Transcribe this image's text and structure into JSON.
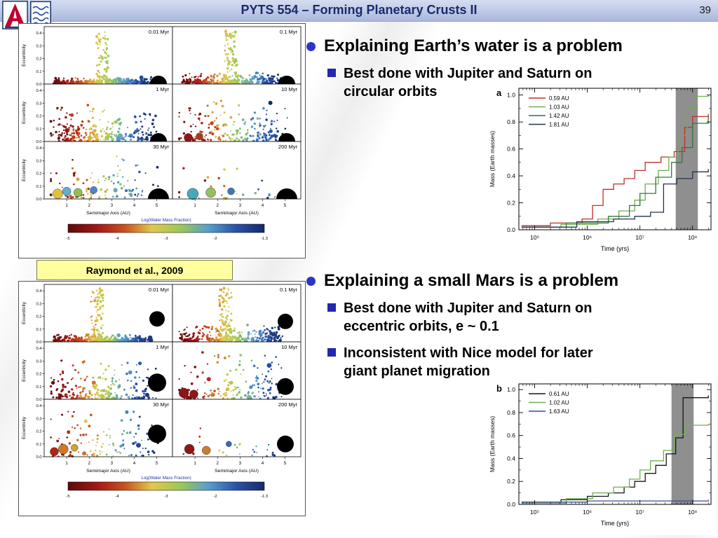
{
  "header": {
    "title": "PYTS 554 – Forming Planetary Crusts II",
    "page_number": "39"
  },
  "slide": {
    "caption_box": "Raymond et al., 2009",
    "bullet1": "Explaining Earth’s water is a problem",
    "sub1a": "Best done with Jupiter and Saturn on\ncircular orbits",
    "bullet2": "Explaining a small Mars is a problem",
    "sub2a": "Best done with Jupiter and Saturn on\neccentric orbits, e ~ 0.1",
    "sub2b": "Inconsistent with Nice model for later\ngiant planet migration",
    "bullet_color": "#2d35c8",
    "sub_bullet_color": "#2228b0"
  },
  "scatter_figures": {
    "xlabel": "Semimajor Axis (AU)",
    "ylabel": "Eccentricity",
    "colorbar_label": "Log(Water Mass Fraction)",
    "colorbar_ticks": [
      "-5",
      "-4",
      "-3",
      "-2",
      "-1.3"
    ],
    "colorbar_stops": [
      "#5e0b0b",
      "#a01616",
      "#c8501e",
      "#e2c84c",
      "#9cc855",
      "#58a0cc",
      "#2a52a8",
      "#142a66"
    ],
    "x_ticks": [
      "1",
      "2",
      "3",
      "4",
      "5"
    ],
    "y_ticks": [
      "0.0",
      "0.1",
      "0.2",
      "0.3",
      "0.4"
    ],
    "panel_labels": [
      "0.01 Myr",
      "0.1 Myr",
      "1 Myr",
      "10 Myr",
      "30 Myr",
      "200 Myr"
    ],
    "figures": [
      {
        "id": "circular",
        "giant_style": "semicircle",
        "plume_center": 2.6,
        "panels": [
          {
            "label": "0.01 Myr",
            "n": 300,
            "emax": 0.05,
            "scatter": 0.05,
            "plume": 0.22,
            "giant_r": 12,
            "giant_e": 0,
            "planets": []
          },
          {
            "label": "0.1 Myr",
            "n": 300,
            "emax": 0.09,
            "scatter": 0.15,
            "plume": 0.22,
            "giant_r": 12,
            "giant_e": 0,
            "planets": []
          },
          {
            "label": "1 Myr",
            "n": 260,
            "emax": 0.3,
            "scatter": 0.55,
            "plume": 0,
            "giant_r": 12,
            "giant_e": 0,
            "planets": []
          },
          {
            "label": "10 Myr",
            "n": 210,
            "emax": 0.34,
            "scatter": 0.9,
            "plume": 0,
            "giant_r": 12,
            "giant_e": 0,
            "planets": [
              {
                "a": 0.7,
                "e": 0.03,
                "r": 6,
                "color": "#8f1616"
              },
              {
                "a": 1.2,
                "e": 0.04,
                "r": 5,
                "color": "#a83a20"
              }
            ]
          },
          {
            "label": "30 Myr",
            "n": 120,
            "emax": 0.38,
            "scatter": 1.3,
            "plume": 0,
            "giant_r": 15,
            "giant_e": 0,
            "planets": [
              {
                "a": 0.6,
                "e": 0.04,
                "r": 7,
                "color": "#e0c23a"
              },
              {
                "a": 1.0,
                "e": 0.06,
                "r": 6,
                "color": "#5fb0c8"
              },
              {
                "a": 1.5,
                "e": 0.05,
                "r": 6,
                "color": "#8fbe5a"
              },
              {
                "a": 2.2,
                "e": 0.07,
                "r": 5,
                "color": "#4a86c8"
              }
            ]
          },
          {
            "label": "200 Myr",
            "n": 30,
            "emax": 0.28,
            "scatter": 1.6,
            "plume": 0,
            "giant_r": 15,
            "giant_e": 0,
            "planets": [
              {
                "a": 0.9,
                "e": 0.04,
                "r": 8,
                "color": "#49a8b8"
              },
              {
                "a": 1.7,
                "e": 0.05,
                "r": 7,
                "color": "#96bd62"
              },
              {
                "a": 2.6,
                "e": 0.06,
                "r": 5,
                "color": "#3f76b4"
              }
            ]
          }
        ]
      },
      {
        "id": "eccentric",
        "giant_style": "circle",
        "plume_center": 2.35,
        "panels": [
          {
            "label": "0.01 Myr",
            "n": 300,
            "emax": 0.06,
            "scatter": 0.06,
            "plume": 0.28,
            "giant_r": 11,
            "giant_e": 0.18,
            "planets": []
          },
          {
            "label": "0.1 Myr",
            "n": 280,
            "emax": 0.14,
            "scatter": 0.25,
            "plume": 0.3,
            "giant_r": 11,
            "giant_e": 0.16,
            "planets": []
          },
          {
            "label": "1 Myr",
            "n": 240,
            "emax": 0.34,
            "scatter": 0.5,
            "plume": 0,
            "giant_r": 13,
            "giant_e": 0.13,
            "planets": []
          },
          {
            "label": "10 Myr",
            "n": 170,
            "emax": 0.4,
            "scatter": 0.7,
            "plume": 0,
            "giant_r": 12,
            "giant_e": 0.1,
            "planets": [
              {
                "a": 0.5,
                "e": 0.05,
                "r": 7,
                "color": "#8f1616"
              },
              {
                "a": 0.95,
                "e": 0.04,
                "r": 6,
                "color": "#8f1616"
              }
            ]
          },
          {
            "label": "30 Myr",
            "n": 110,
            "emax": 0.42,
            "scatter": 0.9,
            "plume": 0,
            "giant_r": 13,
            "giant_e": 0.18,
            "planets": [
              {
                "a": 0.45,
                "e": 0.04,
                "r": 6,
                "color": "#b02418"
              },
              {
                "a": 0.85,
                "e": 0.06,
                "r": 7,
                "color": "#cc7a26"
              },
              {
                "a": 1.35,
                "e": 0.07,
                "r": 5,
                "color": "#d2a23a"
              }
            ]
          },
          {
            "label": "200 Myr",
            "n": 26,
            "emax": 0.3,
            "scatter": 1.1,
            "plume": 0,
            "giant_r": 12,
            "giant_e": 0.1,
            "planets": [
              {
                "a": 0.75,
                "e": 0.06,
                "r": 7,
                "color": "#8f1616"
              },
              {
                "a": 1.5,
                "e": 0.05,
                "r": 6,
                "color": "#c87e2e"
              },
              {
                "a": 2.5,
                "e": 0.1,
                "r": 4,
                "color": "#3a6ab0"
              }
            ]
          }
        ]
      }
    ]
  },
  "chart_data": [
    {
      "id": "a",
      "panel_label": "a",
      "type": "line",
      "x_scale": "log",
      "xlabel": "Time (yrs)",
      "ylabel": "Mass (Earth masses)",
      "x_ticks_log": [
        5,
        6,
        7,
        8
      ],
      "x_tick_labels": [
        "10⁵",
        "10⁶",
        "10⁷",
        "10⁸"
      ],
      "y_ticks": [
        "0.0",
        "0.2",
        "0.4",
        "0.6",
        "0.8",
        "1.0"
      ],
      "xlim_log": [
        4.7,
        8.35
      ],
      "ylim": [
        0,
        1.05
      ],
      "shaded_band_log": [
        7.68,
        8.1
      ],
      "band_color": "#8f8f8f",
      "series": [
        {
          "name": "0.59 AU",
          "color": "#c03028",
          "points": [
            [
              4.75,
              0.03
            ],
            [
              5.3,
              0.05
            ],
            [
              5.9,
              0.08
            ],
            [
              6.1,
              0.18
            ],
            [
              6.3,
              0.3
            ],
            [
              6.5,
              0.34
            ],
            [
              6.7,
              0.38
            ],
            [
              6.9,
              0.44
            ],
            [
              7.1,
              0.5
            ],
            [
              7.4,
              0.54
            ],
            [
              7.65,
              0.58
            ],
            [
              7.85,
              0.76
            ],
            [
              8.0,
              0.84
            ],
            [
              8.3,
              0.86
            ]
          ]
        },
        {
          "name": "1.03 AU",
          "color": "#6fae4f",
          "points": [
            [
              4.75,
              0.02
            ],
            [
              5.5,
              0.04
            ],
            [
              6.2,
              0.08
            ],
            [
              6.6,
              0.14
            ],
            [
              6.9,
              0.22
            ],
            [
              7.1,
              0.34
            ],
            [
              7.35,
              0.44
            ],
            [
              7.55,
              0.54
            ],
            [
              7.72,
              0.7
            ],
            [
              7.9,
              0.9
            ],
            [
              8.05,
              0.99
            ],
            [
              8.3,
              1.0
            ]
          ]
        },
        {
          "name": "1.42 AU",
          "color": "#2f7a38",
          "points": [
            [
              4.75,
              0.02
            ],
            [
              5.6,
              0.05
            ],
            [
              6.4,
              0.1
            ],
            [
              6.8,
              0.18
            ],
            [
              7.0,
              0.27
            ],
            [
              7.3,
              0.39
            ],
            [
              7.6,
              0.5
            ],
            [
              7.8,
              0.61
            ],
            [
              8.0,
              0.79
            ],
            [
              8.3,
              0.84
            ]
          ]
        },
        {
          "name": "1.81 AU",
          "color": "#23304f",
          "points": [
            [
              4.75,
              0.02
            ],
            [
              5.8,
              0.06
            ],
            [
              6.5,
              0.08
            ],
            [
              6.9,
              0.1
            ],
            [
              7.2,
              0.13
            ],
            [
              7.45,
              0.34
            ],
            [
              7.7,
              0.38
            ],
            [
              8.0,
              0.43
            ],
            [
              8.3,
              0.45
            ]
          ]
        }
      ]
    },
    {
      "id": "b",
      "panel_label": "b",
      "type": "line",
      "x_scale": "log",
      "xlabel": "Time (yrs)",
      "ylabel": "Mass (Earth masses)",
      "x_ticks_log": [
        5,
        6,
        7,
        8
      ],
      "x_tick_labels": [
        "10⁵",
        "10⁶",
        "10⁷",
        "10⁸"
      ],
      "y_ticks": [
        "0.0",
        "0.2",
        "0.4",
        "0.6",
        "0.8",
        "1.0"
      ],
      "xlim_log": [
        4.7,
        8.35
      ],
      "ylim": [
        0,
        1.05
      ],
      "shaded_band_log": [
        7.6,
        8.02
      ],
      "band_color": "#8f8f8f",
      "series": [
        {
          "name": "0.61 AU",
          "color": "#151515",
          "points": [
            [
              4.75,
              0.02
            ],
            [
              5.5,
              0.04
            ],
            [
              6.0,
              0.07
            ],
            [
              6.4,
              0.1
            ],
            [
              6.7,
              0.15
            ],
            [
              6.9,
              0.2
            ],
            [
              7.1,
              0.27
            ],
            [
              7.3,
              0.34
            ],
            [
              7.5,
              0.44
            ],
            [
              7.68,
              0.58
            ],
            [
              7.82,
              0.93
            ],
            [
              8.3,
              0.95
            ]
          ]
        },
        {
          "name": "1.02 AU",
          "color": "#6fae4f",
          "points": [
            [
              4.75,
              0.01
            ],
            [
              5.6,
              0.05
            ],
            [
              6.1,
              0.1
            ],
            [
              6.5,
              0.15
            ],
            [
              6.8,
              0.22
            ],
            [
              7.0,
              0.3
            ],
            [
              7.2,
              0.38
            ],
            [
              7.45,
              0.47
            ],
            [
              7.65,
              0.61
            ],
            [
              7.85,
              0.69
            ],
            [
              8.3,
              0.7
            ]
          ]
        },
        {
          "name": "1.63 AU",
          "color": "#3a4d96",
          "points": [
            [
              4.75,
              0.02
            ],
            [
              6.0,
              0.03
            ],
            [
              7.2,
              0.03
            ],
            [
              8.3,
              0.04
            ]
          ]
        }
      ]
    }
  ]
}
